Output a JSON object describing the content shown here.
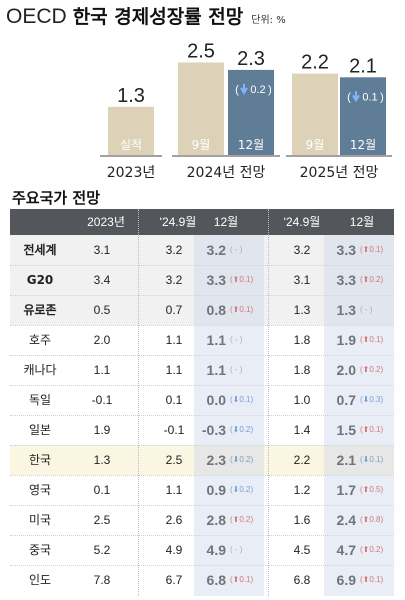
{
  "header": {
    "title_en": "OECD",
    "title_ko": "한국 경제성장률 전망",
    "unit": "단위: %"
  },
  "colors": {
    "tan": "#ddd2b8",
    "steel": "#5f7d96",
    "arrow_up": "#d42a2a",
    "arrow_down": "#2f73c3",
    "header_bg": "#53565a"
  },
  "chart_data": {
    "type": "bar",
    "groups": [
      {
        "label": "2023년",
        "bars": [
          {
            "value": 1.3,
            "label": "실적",
            "color": "tan"
          }
        ]
      },
      {
        "label": "2024년 전망",
        "bars": [
          {
            "value": 2.5,
            "label": "9월",
            "color": "tan"
          },
          {
            "value": 2.3,
            "label": "12월",
            "color": "steel",
            "change": "0.2",
            "direction": "down"
          }
        ]
      },
      {
        "label": "2025년 전망",
        "bars": [
          {
            "value": 2.2,
            "label": "9월",
            "color": "tan"
          },
          {
            "value": 2.1,
            "label": "12월",
            "color": "steel",
            "change": "0.1",
            "direction": "down"
          }
        ]
      }
    ]
  },
  "table": {
    "subtitle": "주요국가 전망",
    "columns": [
      "",
      "2023년",
      "'24.9월",
      "12월",
      "'24.9월",
      "12월"
    ],
    "rows": [
      {
        "name": "전세계",
        "bold": true,
        "style": "alt",
        "y2023": "3.1",
        "sep24": "3.2",
        "dec24": "3.2",
        "chg24": "( - )",
        "dir24": "flat",
        "sep25": "3.2",
        "dec25": "3.3",
        "chg25": "0.1",
        "dir25": "up"
      },
      {
        "name": "G20",
        "bold": true,
        "style": "alt",
        "y2023": "3.4",
        "sep24": "3.2",
        "dec24": "3.3",
        "chg24": "0.1",
        "dir24": "up",
        "sep25": "3.1",
        "dec25": "3.3",
        "chg25": "0.2",
        "dir25": "up"
      },
      {
        "name": "유로존",
        "bold": true,
        "style": "alt",
        "y2023": "0.5",
        "sep24": "0.7",
        "dec24": "0.8",
        "chg24": "0.1",
        "dir24": "up",
        "sep25": "1.3",
        "dec25": "1.3",
        "chg25": "( - )",
        "dir25": "flat"
      },
      {
        "name": "호주",
        "bold": false,
        "style": "",
        "y2023": "2.0",
        "sep24": "1.1",
        "dec24": "1.1",
        "chg24": "( - )",
        "dir24": "flat",
        "sep25": "1.8",
        "dec25": "1.9",
        "chg25": "0.1",
        "dir25": "up"
      },
      {
        "name": "캐나다",
        "bold": false,
        "style": "",
        "y2023": "1.1",
        "sep24": "1.1",
        "dec24": "1.1",
        "chg24": "( - )",
        "dir24": "flat",
        "sep25": "1.8",
        "dec25": "2.0",
        "chg25": "0.2",
        "dir25": "up"
      },
      {
        "name": "독일",
        "bold": false,
        "style": "",
        "y2023": "-0.1",
        "sep24": "0.1",
        "dec24": "0.0",
        "chg24": "0.1",
        "dir24": "down",
        "sep25": "1.0",
        "dec25": "0.7",
        "chg25": "0.3",
        "dir25": "down"
      },
      {
        "name": "일본",
        "bold": false,
        "style": "",
        "y2023": "1.9",
        "sep24": "-0.1",
        "dec24": "-0.3",
        "chg24": "0.2",
        "dir24": "down",
        "sep25": "1.4",
        "dec25": "1.5",
        "chg25": "0.1",
        "dir25": "up"
      },
      {
        "name": "한국",
        "bold": false,
        "style": "hl",
        "y2023": "1.3",
        "sep24": "2.5",
        "dec24": "2.3",
        "chg24": "0.2",
        "dir24": "down",
        "sep25": "2.2",
        "dec25": "2.1",
        "chg25": "0.1",
        "dir25": "down"
      },
      {
        "name": "영국",
        "bold": false,
        "style": "",
        "y2023": "0.1",
        "sep24": "1.1",
        "dec24": "0.9",
        "chg24": "0.2",
        "dir24": "down",
        "sep25": "1.2",
        "dec25": "1.7",
        "chg25": "0.5",
        "dir25": "up"
      },
      {
        "name": "미국",
        "bold": false,
        "style": "",
        "y2023": "2.5",
        "sep24": "2.6",
        "dec24": "2.8",
        "chg24": "0.2",
        "dir24": "up",
        "sep25": "1.6",
        "dec25": "2.4",
        "chg25": "0.8",
        "dir25": "up"
      },
      {
        "name": "중국",
        "bold": false,
        "style": "",
        "y2023": "5.2",
        "sep24": "4.9",
        "dec24": "4.9",
        "chg24": "( - )",
        "dir24": "flat",
        "sep25": "4.5",
        "dec25": "4.7",
        "chg25": "0.2",
        "dir25": "up"
      },
      {
        "name": "인도",
        "bold": false,
        "style": "",
        "y2023": "7.8",
        "sep24": "6.7",
        "dec24": "6.8",
        "chg24": "0.1",
        "dir24": "up",
        "sep25": "6.8",
        "dec25": "6.9",
        "chg25": "0.1",
        "dir25": "up"
      }
    ]
  }
}
